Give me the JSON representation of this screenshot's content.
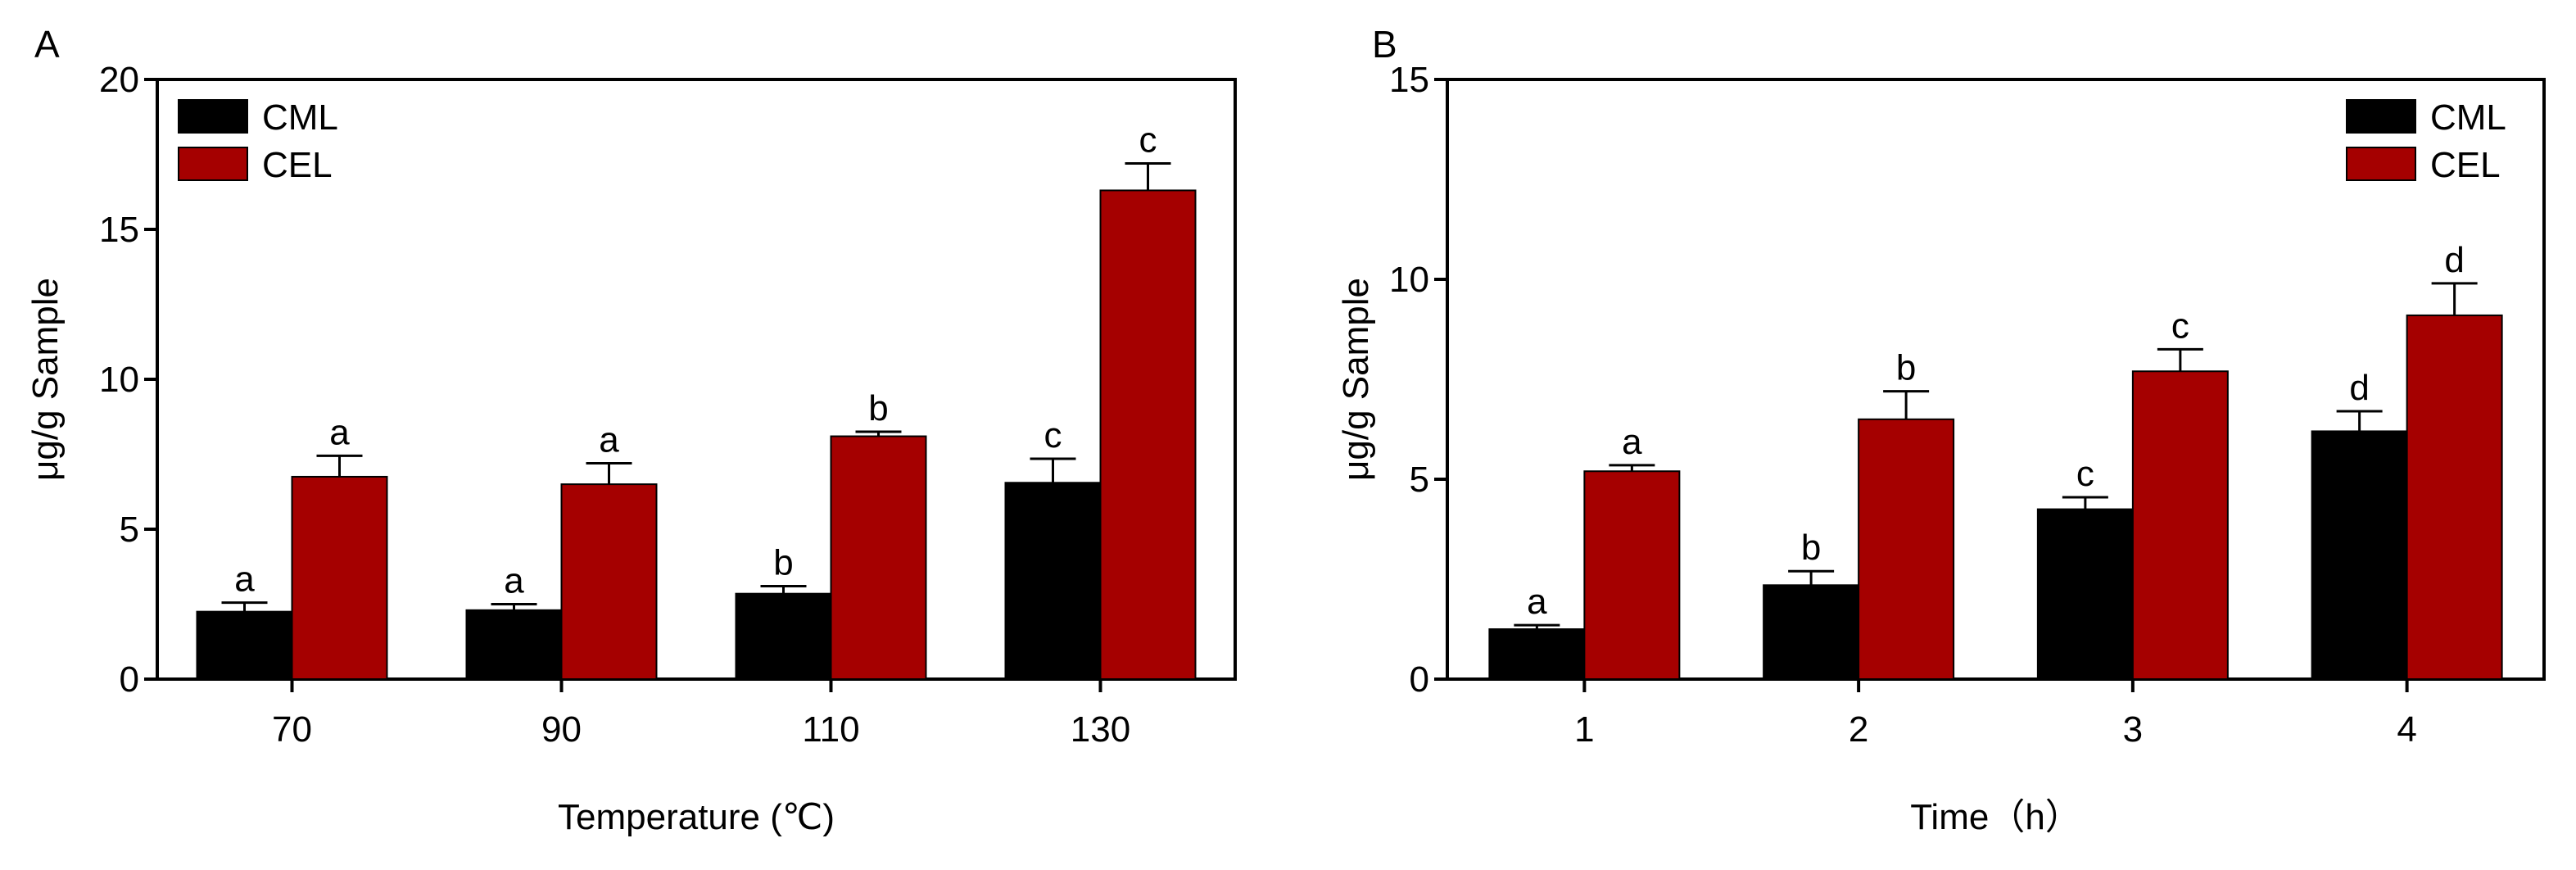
{
  "colors": {
    "CML": "#000000",
    "CEL": "#a50000",
    "axis": "#000000"
  },
  "chart_data": [
    {
      "panel_label": "A",
      "type": "bar",
      "xlabel": "Temperature (℃)",
      "ylabel": "μg/g Sample",
      "ylim": [
        0,
        20
      ],
      "yticks": [
        "0",
        "5",
        "10",
        "15",
        "20"
      ],
      "categories": [
        "70",
        "90",
        "110",
        "130"
      ],
      "legend": {
        "position": "top-left",
        "entries": [
          "CML",
          "CEL"
        ]
      },
      "grid": false,
      "series": [
        {
          "name": "CML",
          "values": [
            2.25,
            2.3,
            2.85,
            6.55
          ],
          "errors": [
            0.3,
            0.2,
            0.25,
            0.8
          ],
          "labels": [
            "a",
            "a",
            "b",
            "c"
          ]
        },
        {
          "name": "CEL",
          "values": [
            6.75,
            6.5,
            8.1,
            16.3
          ],
          "errors": [
            0.7,
            0.7,
            0.15,
            0.9
          ],
          "labels": [
            "a",
            "a",
            "b",
            "c"
          ]
        }
      ]
    },
    {
      "panel_label": "B",
      "type": "bar",
      "xlabel": "Time（h）",
      "ylabel": "μg/g Sample",
      "ylim": [
        0,
        15
      ],
      "yticks": [
        "0",
        "5",
        "10",
        "15"
      ],
      "categories": [
        "1",
        "2",
        "3",
        "4"
      ],
      "legend": {
        "position": "top-right",
        "entries": [
          "CML",
          "CEL"
        ]
      },
      "grid": false,
      "series": [
        {
          "name": "CML",
          "values": [
            1.25,
            2.35,
            4.25,
            6.2
          ],
          "errors": [
            0.1,
            0.35,
            0.3,
            0.5
          ],
          "labels": [
            "a",
            "b",
            "c",
            "d"
          ]
        },
        {
          "name": "CEL",
          "values": [
            5.2,
            6.5,
            7.7,
            9.1
          ],
          "errors": [
            0.15,
            0.7,
            0.55,
            0.8
          ],
          "labels": [
            "a",
            "b",
            "c",
            "d"
          ]
        }
      ]
    }
  ]
}
